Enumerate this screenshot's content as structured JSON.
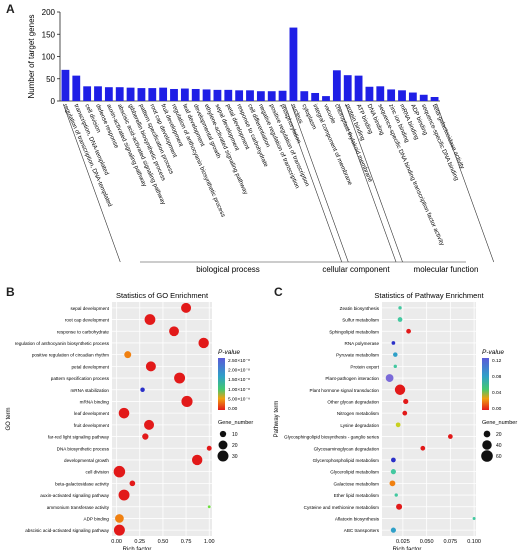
{
  "panel_labels": {
    "a": "A",
    "b": "B",
    "c": "C"
  },
  "chart_data": [
    {
      "type": "bar",
      "ylabel": "Number of target genes",
      "ylim": [
        0,
        200
      ],
      "yticks": [
        0,
        50,
        100,
        150,
        200
      ],
      "bar_color": "#1f1fe6",
      "categories": [
        "regulation of transcription, DNA-templated",
        "transcription, DNA-templated",
        "cell division",
        "defense response",
        "auxin-activated signaling pathway",
        "abscisic acid-activated signaling pathway",
        "gibberellin biosynthetic process",
        "pattern specification process",
        "root cap development",
        "fruit development",
        "regulation of anthocyanin biosynthetic process",
        "leaf development",
        "developmental growth",
        "ethylene-activated signaling pathway",
        "sepal development",
        "petal development",
        "response to carbohydrate",
        "cell differentiation",
        "negative regulation of transcription",
        "positive regulation of transcription",
        "phosphorylation",
        "nucleus",
        "cytoplasm",
        "integral component of membrane",
        "vacuole",
        "chloroplast thylakoid membrane",
        "protein binding",
        "ATP binding",
        "DNA binding",
        "sequence-specific DNA binding transcription factor activity",
        "zinc ion binding",
        "mRNA binding",
        "ADP binding",
        "sequence-specific DNA binding",
        "beta-galactosidase activity"
      ],
      "values": [
        70,
        57,
        33,
        33,
        31,
        31,
        30,
        29,
        29,
        30,
        27,
        28,
        27,
        26,
        25,
        25,
        24,
        24,
        22,
        22,
        23,
        165,
        22,
        18,
        11,
        69,
        58,
        57,
        32,
        33,
        26,
        24,
        19,
        14,
        9
      ],
      "groups": [
        {
          "name": "biological process",
          "start": 0,
          "end": 20
        },
        {
          "name": "cellular component",
          "start": 21,
          "end": 25
        },
        {
          "name": "molecular function",
          "start": 26,
          "end": 34
        }
      ]
    },
    {
      "type": "scatter",
      "title": "Statistics of GO Enrichment",
      "xlabel": "Rich factor",
      "ylabel": "GO term",
      "xlim": [
        0,
        1.0
      ],
      "xticks": [
        0,
        0.25,
        0.5,
        0.75,
        1.0
      ],
      "xtick_labels": [
        "0.00",
        "0.25",
        "0.50",
        "0.75",
        "1.00"
      ],
      "legend": {
        "color_title": "P-value",
        "color_ticks": [
          "2.50×10⁻⁸",
          "2.00×10⁻⁸",
          "1.50×10⁻⁸",
          "1.00×10⁻⁸",
          "5.00×10⁻⁹",
          "0.00"
        ],
        "size_title": "Gene_number",
        "size_values": [
          "10",
          "20",
          "30"
        ]
      },
      "terms": [
        "sepal development",
        "root cap development",
        "response to carbohydrate",
        "regulation of anthocyanin biosynthetic process",
        "positive regulation of circadian rhythm",
        "petal development",
        "pattern specification process",
        "mRNA stabilization",
        "mRNA binding",
        "leaf development",
        "fruit development",
        "far-red light signaling pathway",
        "DNA biosynthetic process",
        "developmental growth",
        "cell division",
        "beta-galactosidase activity",
        "auxin-activated signaling pathway",
        "ammonium transferase activity",
        "ADP binding",
        "abscisic acid-activated signaling pathway"
      ],
      "x": [
        0.75,
        0.36,
        0.62,
        0.94,
        0.12,
        0.37,
        0.68,
        0.28,
        0.76,
        0.08,
        0.35,
        0.31,
        1.0,
        0.87,
        0.03,
        0.17,
        0.08,
        1.0,
        0.03,
        0.03
      ],
      "gene_number": [
        25,
        29,
        24,
        27,
        12,
        25,
        30,
        5,
        31,
        28,
        25,
        10,
        6,
        27,
        33,
        8,
        30,
        2,
        19,
        30
      ],
      "color": [
        "#e21919",
        "#e21919",
        "#e21919",
        "#e21919",
        "#f08010",
        "#e21919",
        "#e21919",
        "#2a30c8",
        "#e21919",
        "#e21919",
        "#e21919",
        "#e21919",
        "#e21919",
        "#e21919",
        "#e21919",
        "#e21919",
        "#e21919",
        "#6ee040",
        "#f08010",
        "#e21919"
      ]
    },
    {
      "type": "scatter",
      "title": "Statistics of Pathway Enrichment",
      "xlabel": "Rich factor",
      "ylabel": "Pathway term",
      "xlim": [
        0.005,
        0.1
      ],
      "xticks": [
        0.025,
        0.05,
        0.075,
        0.1
      ],
      "xtick_labels": [
        "0.025",
        "0.050",
        "0.075",
        "0.100"
      ],
      "legend": {
        "color_title": "P-value",
        "color_ticks": [
          "0.12",
          "0.08",
          "0.04",
          "0.00"
        ],
        "size_title": "Gene_number",
        "size_values": [
          "20",
          "40",
          "60"
        ]
      },
      "terms": [
        "Zeatin biosynthesis",
        "Sulfur metabolism",
        "Sphingolipid metabolism",
        "RNA polymerase",
        "Pyruvate metabolism",
        "Protein export",
        "Plant-pathogen interaction",
        "Plant hormone signal transduction",
        "Other glycan degradation",
        "Nitrogen metabolism",
        "Lysine degradation",
        "Glycosphingolipid biosynthesis - ganglio series",
        "Glycosaminoglycan degradation",
        "Glycerophospholipid metabolism",
        "Glycerolipid metabolism",
        "Galactose metabolism",
        "Ether lipid metabolism",
        "Cysteine and methionine metabolism",
        "Aflatoxin biosynthesis",
        "ABC transporters"
      ],
      "x": [
        0.022,
        0.022,
        0.031,
        0.015,
        0.017,
        0.017,
        0.011,
        0.022,
        0.028,
        0.027,
        0.02,
        0.075,
        0.046,
        0.015,
        0.015,
        0.014,
        0.018,
        0.021,
        0.1,
        0.015
      ],
      "gene_number": [
        5,
        10,
        10,
        6,
        9,
        5,
        27,
        48,
        12,
        10,
        10,
        10,
        10,
        10,
        12,
        15,
        5,
        16,
        4,
        12
      ],
      "color": [
        "#43c8a0",
        "#43c8a0",
        "#e21919",
        "#2a30c8",
        "#2fa0c8",
        "#43c8a0",
        "#7a6ad8",
        "#e21919",
        "#e21919",
        "#e21919",
        "#c8d020",
        "#e21919",
        "#e21919",
        "#2a30c8",
        "#43c8a0",
        "#f08010",
        "#43c8a0",
        "#e21919",
        "#43c8a0",
        "#2fa0c8"
      ]
    }
  ]
}
